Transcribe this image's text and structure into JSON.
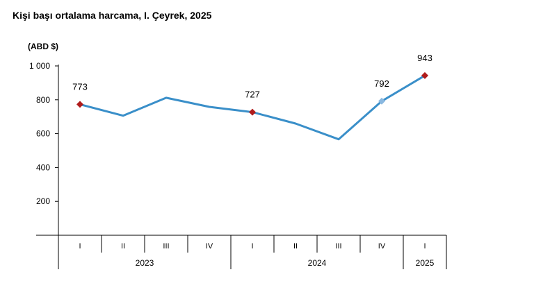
{
  "title": "Kişi başı ortalama harcama, I. Çeyrek, 2025",
  "colors": {
    "line": "#3a8fc9",
    "marker_highlight": "#b01c1c",
    "marker_last_year": "#8ab8e0",
    "axis": "#000000"
  },
  "chart_data": {
    "type": "line",
    "title": "Kişi başı ortalama harcama, I. Çeyrek, 2025",
    "ylabel": "(ABD $)",
    "xlabel": "",
    "ylim": [
      0,
      1000
    ],
    "yticks": [
      200,
      400,
      600,
      800,
      1000
    ],
    "ytick_labels": [
      "200",
      "400",
      "600",
      "800",
      "1 000"
    ],
    "grid": false,
    "categories": [
      "I",
      "II",
      "III",
      "IV",
      "I",
      "II",
      "III",
      "IV",
      "I"
    ],
    "years": [
      {
        "label": "2023",
        "span": 4
      },
      {
        "label": "2024",
        "span": 4
      },
      {
        "label": "2025",
        "span": 1
      }
    ],
    "values": [
      773,
      706,
      812,
      758,
      727,
      660,
      567,
      792,
      943
    ],
    "labeled_points": [
      {
        "index": 0,
        "label": "773",
        "marker": "highlight"
      },
      {
        "index": 4,
        "label": "727",
        "marker": "highlight"
      },
      {
        "index": 7,
        "label": "792",
        "marker": "last_year"
      },
      {
        "index": 8,
        "label": "943",
        "marker": "highlight"
      }
    ]
  }
}
